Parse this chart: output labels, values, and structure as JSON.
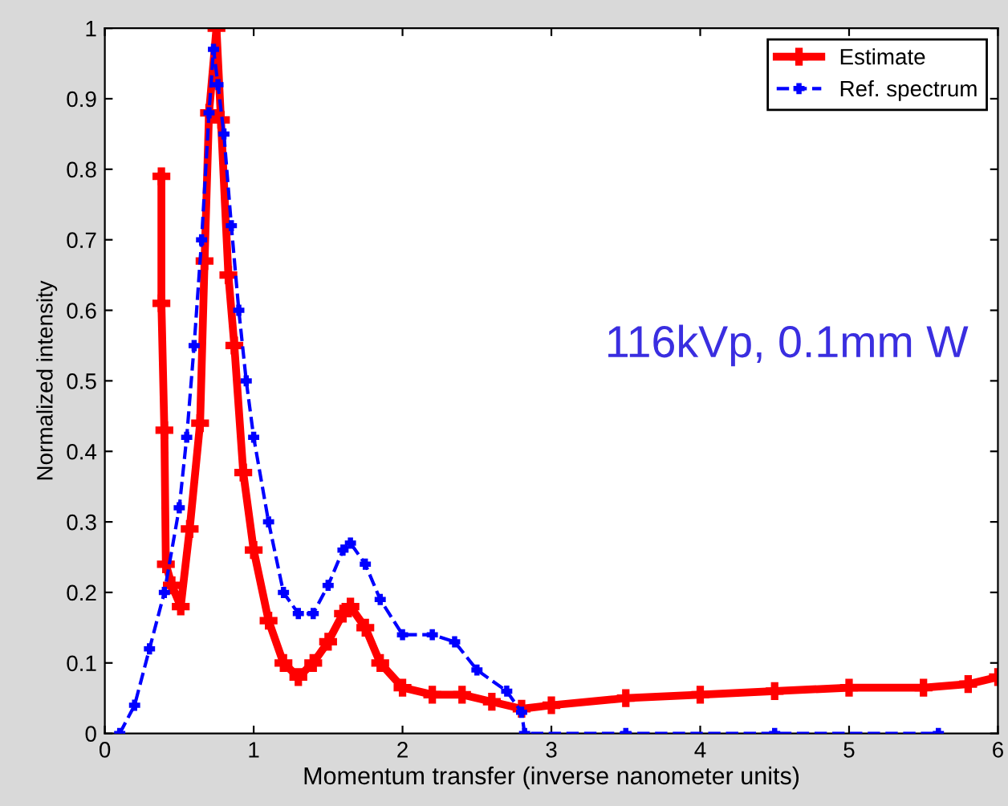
{
  "chart_data": {
    "type": "line",
    "xlabel": "Momentum transfer (inverse nanometer units)",
    "ylabel": "Normalized intensity",
    "xlim": [
      0,
      6
    ],
    "ylim": [
      0,
      1
    ],
    "xticks": [
      0,
      1,
      2,
      3,
      4,
      5,
      6
    ],
    "yticks": [
      0,
      0.1,
      0.2,
      0.3,
      0.4,
      0.5,
      0.6,
      0.7,
      0.8,
      0.9,
      1
    ],
    "grid": false,
    "legend": "top right",
    "annotations": [
      "116kVp, 0.1mm W"
    ],
    "series": [
      {
        "name": "Estimate",
        "color": "#ff0000",
        "marker": "cross",
        "line_style": "solid",
        "x": [
          0.38,
          0.38,
          0.4,
          0.41,
          0.45,
          0.51,
          0.57,
          0.64,
          0.67,
          0.7,
          0.75,
          0.78,
          0.83,
          0.87,
          0.93,
          1.0,
          1.1,
          1.2,
          1.3,
          1.4,
          1.5,
          1.6,
          1.65,
          1.75,
          1.85,
          2.0,
          2.2,
          2.4,
          2.6,
          2.8,
          3.0,
          3.5,
          4.0,
          4.5,
          5.0,
          5.5,
          5.8,
          6.0
        ],
        "values": [
          0.79,
          0.61,
          0.43,
          0.24,
          0.21,
          0.18,
          0.29,
          0.44,
          0.67,
          0.88,
          1.0,
          0.87,
          0.65,
          0.55,
          0.37,
          0.26,
          0.16,
          0.1,
          0.08,
          0.1,
          0.13,
          0.17,
          0.18,
          0.15,
          0.1,
          0.065,
          0.055,
          0.055,
          0.045,
          0.035,
          0.04,
          0.05,
          0.055,
          0.06,
          0.065,
          0.065,
          0.07,
          0.08
        ]
      },
      {
        "name": "Ref. spectrum",
        "color": "#0000ff",
        "marker": "cross",
        "line_style": "dashed",
        "x": [
          0.1,
          0.2,
          0.3,
          0.4,
          0.5,
          0.55,
          0.6,
          0.65,
          0.7,
          0.73,
          0.76,
          0.8,
          0.85,
          0.9,
          0.95,
          1.0,
          1.1,
          1.2,
          1.3,
          1.4,
          1.5,
          1.6,
          1.65,
          1.75,
          1.85,
          2.0,
          2.2,
          2.35,
          2.5,
          2.7,
          2.8,
          2.82,
          3.5,
          4.5,
          5.6
        ],
        "values": [
          0,
          0.04,
          0.12,
          0.2,
          0.32,
          0.42,
          0.55,
          0.7,
          0.88,
          0.97,
          0.92,
          0.85,
          0.72,
          0.6,
          0.5,
          0.42,
          0.3,
          0.2,
          0.17,
          0.17,
          0.21,
          0.26,
          0.27,
          0.24,
          0.19,
          0.14,
          0.14,
          0.13,
          0.09,
          0.06,
          0.03,
          0,
          0,
          0,
          0
        ]
      }
    ]
  }
}
